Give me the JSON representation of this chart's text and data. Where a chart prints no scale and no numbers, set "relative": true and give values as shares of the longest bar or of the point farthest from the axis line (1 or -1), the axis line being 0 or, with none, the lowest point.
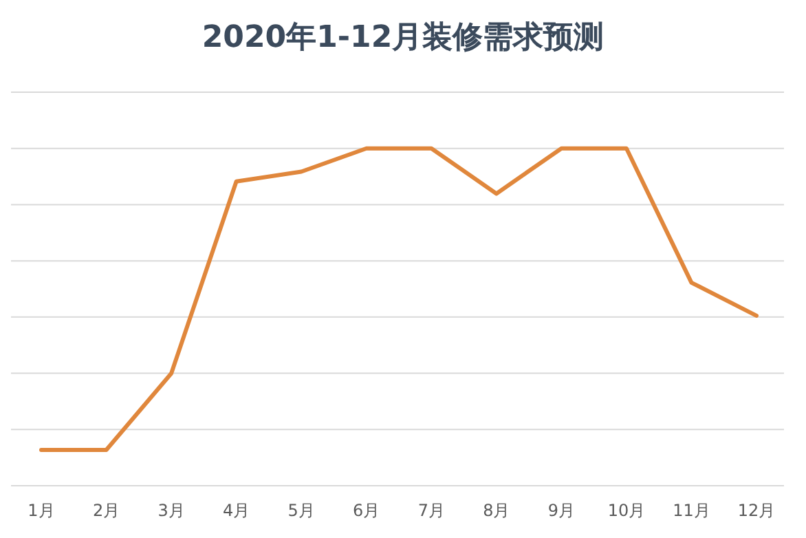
{
  "chart_data": {
    "type": "line",
    "title": "2020年1-12月装修需求预测",
    "relative": true,
    "grid": "y",
    "marker": "none",
    "line_style": "solid",
    "categories": [
      "1月",
      "2月",
      "3月",
      "4月",
      "5月",
      "6月",
      "7月",
      "8月",
      "9月",
      "10月",
      "11月",
      "12月"
    ],
    "series": [
      {
        "color": "#e0873c",
        "values": [
          0.106,
          0.106,
          0.333,
          0.902,
          0.931,
          1,
          1,
          0.866,
          1,
          1,
          0.602,
          0.504
        ]
      }
    ]
  }
}
